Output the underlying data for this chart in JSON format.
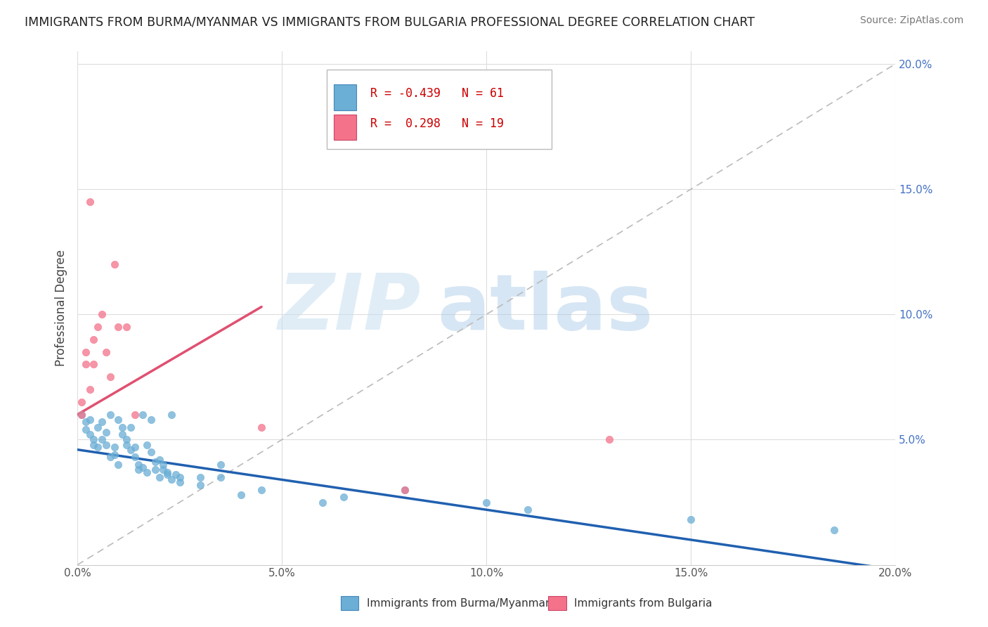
{
  "title": "IMMIGRANTS FROM BURMA/MYANMAR VS IMMIGRANTS FROM BULGARIA PROFESSIONAL DEGREE CORRELATION CHART",
  "source": "Source: ZipAtlas.com",
  "ylabel": "Professional Degree",
  "xlim": [
    0.0,
    0.2
  ],
  "ylim": [
    0.0,
    0.205
  ],
  "x_ticks": [
    0.0,
    0.05,
    0.1,
    0.15,
    0.2
  ],
  "y_ticks": [
    0.05,
    0.1,
    0.15,
    0.2
  ],
  "x_tick_labels": [
    "0.0%",
    "5.0%",
    "10.0%",
    "15.0%",
    "20.0%"
  ],
  "y_tick_labels": [
    "5.0%",
    "10.0%",
    "15.0%",
    "20.0%"
  ],
  "legend_labels": [
    "Immigrants from Burma/Myanmar",
    "Immigrants from Bulgaria"
  ],
  "series1_color": "#6baed6",
  "series2_color": "#f4728a",
  "series1_R": -0.439,
  "series1_N": 61,
  "series2_R": 0.298,
  "series2_N": 19,
  "series1_trendline": {
    "x_start": 0.0,
    "y_start": 0.046,
    "x_end": 0.2,
    "y_end": -0.002
  },
  "series2_trendline": {
    "x_start": 0.0,
    "y_start": 0.06,
    "x_end": 0.045,
    "y_end": 0.103
  },
  "series1_points": [
    [
      0.001,
      0.06
    ],
    [
      0.002,
      0.057
    ],
    [
      0.002,
      0.054
    ],
    [
      0.003,
      0.052
    ],
    [
      0.003,
      0.058
    ],
    [
      0.004,
      0.05
    ],
    [
      0.004,
      0.048
    ],
    [
      0.005,
      0.055
    ],
    [
      0.005,
      0.047
    ],
    [
      0.006,
      0.057
    ],
    [
      0.006,
      0.05
    ],
    [
      0.007,
      0.048
    ],
    [
      0.007,
      0.053
    ],
    [
      0.008,
      0.043
    ],
    [
      0.008,
      0.06
    ],
    [
      0.009,
      0.044
    ],
    [
      0.009,
      0.047
    ],
    [
      0.01,
      0.04
    ],
    [
      0.01,
      0.058
    ],
    [
      0.011,
      0.055
    ],
    [
      0.011,
      0.052
    ],
    [
      0.012,
      0.05
    ],
    [
      0.012,
      0.048
    ],
    [
      0.013,
      0.046
    ],
    [
      0.013,
      0.055
    ],
    [
      0.014,
      0.047
    ],
    [
      0.014,
      0.043
    ],
    [
      0.015,
      0.04
    ],
    [
      0.015,
      0.038
    ],
    [
      0.016,
      0.06
    ],
    [
      0.016,
      0.039
    ],
    [
      0.017,
      0.037
    ],
    [
      0.017,
      0.048
    ],
    [
      0.018,
      0.045
    ],
    [
      0.018,
      0.058
    ],
    [
      0.019,
      0.041
    ],
    [
      0.019,
      0.038
    ],
    [
      0.02,
      0.042
    ],
    [
      0.02,
      0.035
    ],
    [
      0.021,
      0.04
    ],
    [
      0.021,
      0.038
    ],
    [
      0.022,
      0.036
    ],
    [
      0.022,
      0.037
    ],
    [
      0.023,
      0.034
    ],
    [
      0.023,
      0.06
    ],
    [
      0.024,
      0.036
    ],
    [
      0.025,
      0.035
    ],
    [
      0.025,
      0.033
    ],
    [
      0.03,
      0.035
    ],
    [
      0.03,
      0.032
    ],
    [
      0.035,
      0.04
    ],
    [
      0.035,
      0.035
    ],
    [
      0.04,
      0.028
    ],
    [
      0.045,
      0.03
    ],
    [
      0.06,
      0.025
    ],
    [
      0.065,
      0.027
    ],
    [
      0.08,
      0.03
    ],
    [
      0.1,
      0.025
    ],
    [
      0.11,
      0.022
    ],
    [
      0.15,
      0.018
    ],
    [
      0.185,
      0.014
    ]
  ],
  "series2_points": [
    [
      0.001,
      0.065
    ],
    [
      0.001,
      0.06
    ],
    [
      0.002,
      0.08
    ],
    [
      0.002,
      0.085
    ],
    [
      0.003,
      0.07
    ],
    [
      0.003,
      0.145
    ],
    [
      0.004,
      0.09
    ],
    [
      0.004,
      0.08
    ],
    [
      0.005,
      0.095
    ],
    [
      0.006,
      0.1
    ],
    [
      0.007,
      0.085
    ],
    [
      0.008,
      0.075
    ],
    [
      0.009,
      0.12
    ],
    [
      0.01,
      0.095
    ],
    [
      0.012,
      0.095
    ],
    [
      0.014,
      0.06
    ],
    [
      0.045,
      0.055
    ],
    [
      0.08,
      0.03
    ],
    [
      0.13,
      0.05
    ]
  ]
}
